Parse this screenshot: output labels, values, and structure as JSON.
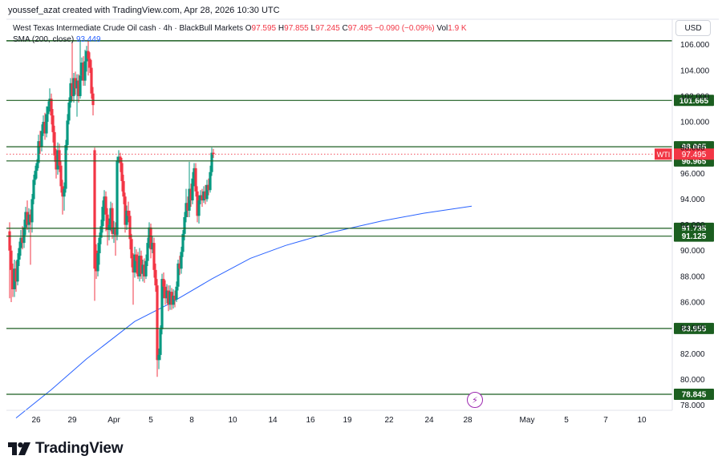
{
  "header": {
    "caption": "youssef_azat created with TradingView.com, Apr 28, 2026 10:30 UTC",
    "symbol": "West Texas Intermediate Crude Oil cash · 4h · BlackBull Markets",
    "ohlc": {
      "o_label": "O",
      "o": "97.595",
      "h_label": "H",
      "h": "97.855",
      "l_label": "L",
      "l": "97.245",
      "c_label": "C",
      "c": "97.495",
      "change": "−0.090 (−0.09%)",
      "vol_label": "Vol",
      "vol": "1.9 K"
    },
    "sma_label": "SMA (200, close)",
    "sma_value": "93.449",
    "currency": "USD"
  },
  "colors": {
    "up": "#089981",
    "down": "#f23645",
    "level_line": "#1b5e20",
    "level_badge": "#1b5e20",
    "sma": "#2962ff",
    "price_badge": "#f23645"
  },
  "logo_text": "TradingView",
  "chart_data": {
    "type": "candlestick",
    "timeframe": "4h",
    "y_ticks": [
      "78.000",
      "80.000",
      "82.000",
      "84.000",
      "86.000",
      "88.000",
      "90.000",
      "92.000",
      "94.000",
      "96.000",
      "98.000",
      "100.000",
      "102.000",
      "104.000",
      "106.000"
    ],
    "ylim": [
      77.6,
      106.6
    ],
    "x_ticks": [
      "26",
      "29",
      "Apr",
      "5",
      "8",
      "10",
      "14",
      "16",
      "19",
      "22",
      "24",
      "28",
      "May",
      "5",
      "7",
      "10"
    ],
    "horizontal_levels": [
      {
        "label": "101.665",
        "value": 101.665
      },
      {
        "label": "98.065",
        "value": 98.065
      },
      {
        "label": "96.965",
        "value": 96.965
      },
      {
        "label": "91.735",
        "value": 91.735
      },
      {
        "label": "91.125",
        "value": 91.125
      },
      {
        "label": "83.955",
        "value": 83.955
      },
      {
        "label": "78.845",
        "value": 78.845
      }
    ],
    "top_level_value": 106.3,
    "current_price": {
      "symbol": "WTI",
      "label": "97.495",
      "value": 97.495
    },
    "sma_points": [
      {
        "bar": 4,
        "value": 77.0
      },
      {
        "bar": 26,
        "value": 79.2
      },
      {
        "bar": 48,
        "value": 81.6
      },
      {
        "bar": 78,
        "value": 84.5
      },
      {
        "bar": 100,
        "value": 85.9
      },
      {
        "bar": 126,
        "value": 87.8
      },
      {
        "bar": 150,
        "value": 89.4
      },
      {
        "bar": 172,
        "value": 90.4
      },
      {
        "bar": 200,
        "value": 91.4
      },
      {
        "bar": 232,
        "value": 92.3
      },
      {
        "bar": 258,
        "value": 92.9
      },
      {
        "bar": 288,
        "value": 93.45
      }
    ],
    "candles": [
      [
        91.5,
        90.0,
        92.2,
        86.3
      ],
      [
        90.0,
        88.5,
        90.4,
        86.0
      ],
      [
        88.5,
        87.0,
        89.0,
        86.4
      ],
      [
        87.0,
        88.6,
        89.3,
        86.4
      ],
      [
        88.6,
        87.6,
        89.2,
        86.8
      ],
      [
        87.6,
        89.3,
        89.8,
        87.3
      ],
      [
        89.3,
        90.2,
        90.7,
        88.8
      ],
      [
        90.2,
        91.0,
        91.6,
        89.6
      ],
      [
        91.0,
        90.6,
        91.9,
        90.1
      ],
      [
        90.6,
        91.8,
        92.4,
        90.2
      ],
      [
        91.8,
        93.0,
        93.4,
        91.2
      ],
      [
        93.0,
        92.0,
        93.9,
        91.6
      ],
      [
        92.0,
        92.8,
        93.3,
        91.4
      ],
      [
        92.8,
        92.2,
        93.2,
        88.9
      ],
      [
        92.2,
        94.0,
        94.4,
        91.4
      ],
      [
        94.0,
        95.5,
        95.9,
        93.6
      ],
      [
        95.5,
        96.2,
        96.6,
        95.1
      ],
      [
        96.2,
        96.8,
        97.1,
        95.6
      ],
      [
        96.8,
        98.5,
        99.0,
        96.4
      ],
      [
        98.5,
        98.1,
        99.3,
        97.5
      ],
      [
        98.1,
        99.3,
        99.8,
        97.7
      ],
      [
        99.3,
        100.0,
        100.5,
        98.9
      ],
      [
        100.0,
        99.1,
        100.7,
        98.6
      ],
      [
        99.1,
        100.6,
        101.2,
        98.8
      ],
      [
        100.6,
        101.2,
        101.6,
        100.0
      ],
      [
        101.2,
        101.8,
        102.6,
        100.8
      ],
      [
        101.8,
        100.5,
        102.2,
        99.8
      ],
      [
        100.5,
        99.2,
        101.0,
        98.4
      ],
      [
        99.2,
        97.4,
        99.7,
        96.9
      ],
      [
        97.4,
        96.3,
        97.9,
        95.6
      ],
      [
        96.3,
        97.8,
        98.4,
        95.9
      ],
      [
        97.8,
        96.6,
        98.3,
        96.1
      ],
      [
        96.6,
        95.0,
        97.0,
        94.5
      ],
      [
        95.0,
        94.2,
        95.5,
        92.8
      ],
      [
        94.2,
        94.8,
        95.3,
        93.1
      ],
      [
        94.8,
        98.2,
        98.6,
        94.5
      ],
      [
        98.2,
        100.1,
        100.6,
        97.8
      ],
      [
        100.1,
        101.5,
        101.9,
        99.8
      ],
      [
        101.5,
        103.0,
        103.4,
        101.1
      ],
      [
        103.0,
        102.0,
        106.2,
        101.6
      ],
      [
        102.0,
        103.4,
        103.8,
        101.5
      ],
      [
        103.4,
        102.6,
        103.9,
        102.1
      ],
      [
        102.6,
        103.2,
        103.7,
        100.4
      ],
      [
        103.2,
        102.0,
        103.7,
        101.5
      ],
      [
        102.0,
        103.6,
        106.3,
        101.8
      ],
      [
        103.6,
        104.6,
        105.0,
        103.2
      ],
      [
        104.6,
        103.2,
        105.1,
        102.8
      ],
      [
        103.2,
        104.7,
        105.6,
        102.8
      ],
      [
        104.7,
        105.5,
        105.9,
        103.9
      ],
      [
        105.5,
        104.9,
        106.3,
        103.6
      ],
      [
        104.9,
        104.2,
        105.4,
        103.8
      ],
      [
        104.2,
        102.2,
        104.8,
        101.8
      ],
      [
        102.2,
        101.3,
        102.7,
        100.5
      ],
      [
        97.8,
        88.6,
        98.0,
        86.1
      ],
      [
        90.0,
        88.4,
        90.5,
        87.8
      ],
      [
        88.4,
        89.8,
        90.6,
        88.0
      ],
      [
        89.8,
        91.0,
        91.4,
        88.9
      ],
      [
        91.0,
        91.9,
        92.4,
        90.5
      ],
      [
        91.9,
        93.4,
        93.9,
        91.4
      ],
      [
        93.4,
        94.2,
        94.7,
        92.3
      ],
      [
        94.2,
        92.8,
        94.6,
        91.5
      ],
      [
        92.8,
        91.6,
        93.3,
        90.4
      ],
      [
        91.6,
        92.0,
        92.5,
        90.8
      ],
      [
        92.0,
        93.3,
        93.8,
        91.5
      ],
      [
        93.3,
        91.3,
        93.7,
        90.9
      ],
      [
        91.3,
        91.8,
        92.3,
        90.6
      ],
      [
        91.8,
        91.2,
        92.2,
        89.6
      ],
      [
        91.2,
        97.0,
        97.3,
        90.8
      ],
      [
        97.0,
        97.3,
        97.8,
        96.8
      ],
      [
        97.3,
        96.8,
        97.6,
        96.1
      ],
      [
        96.8,
        95.4,
        97.2,
        94.6
      ],
      [
        95.4,
        94.2,
        95.9,
        93.6
      ],
      [
        94.2,
        92.0,
        94.5,
        91.4
      ],
      [
        92.0,
        93.1,
        93.5,
        91.6
      ],
      [
        93.1,
        92.7,
        93.8,
        92.2
      ],
      [
        92.7,
        90.9,
        93.1,
        90.1
      ],
      [
        90.9,
        89.4,
        91.3,
        88.7
      ],
      [
        89.4,
        88.3,
        89.8,
        85.8
      ],
      [
        88.3,
        89.7,
        90.3,
        87.9
      ],
      [
        89.7,
        89.2,
        90.1,
        88.2
      ],
      [
        89.2,
        88.0,
        89.9,
        87.8
      ],
      [
        88.0,
        89.6,
        90.2,
        87.6
      ],
      [
        89.6,
        88.2,
        90.0,
        87.8
      ],
      [
        88.2,
        88.9,
        89.3,
        87.6
      ],
      [
        88.9,
        88.0,
        89.4,
        87.5
      ],
      [
        88.0,
        89.2,
        89.7,
        87.8
      ],
      [
        89.2,
        90.6,
        91.0,
        88.8
      ],
      [
        90.6,
        91.8,
        92.2,
        90.2
      ],
      [
        91.8,
        90.1,
        92.1,
        89.4
      ],
      [
        90.1,
        90.6,
        91.1,
        89.8
      ],
      [
        90.6,
        88.5,
        91.0,
        87.9
      ],
      [
        88.5,
        87.3,
        89.0,
        86.8
      ],
      [
        87.3,
        81.5,
        87.8,
        80.2
      ],
      [
        81.5,
        81.9,
        82.4,
        80.8
      ],
      [
        81.9,
        83.9,
        84.2,
        81.5
      ],
      [
        83.9,
        87.8,
        88.2,
        83.5
      ],
      [
        87.8,
        87.2,
        88.3,
        86.3
      ],
      [
        87.2,
        86.3,
        87.7,
        85.8
      ],
      [
        86.3,
        86.9,
        87.4,
        85.9
      ],
      [
        86.9,
        85.8,
        87.3,
        85.3
      ],
      [
        85.8,
        86.8,
        87.3,
        85.4
      ],
      [
        86.8,
        85.8,
        87.1,
        85.4
      ],
      [
        85.8,
        86.5,
        87.0,
        85.5
      ],
      [
        86.5,
        86.2,
        86.9,
        85.6
      ],
      [
        86.2,
        87.2,
        87.6,
        86.0
      ],
      [
        87.2,
        89.0,
        89.3,
        86.9
      ],
      [
        89.0,
        88.6,
        89.6,
        88.1
      ],
      [
        88.6,
        89.9,
        90.3,
        88.2
      ],
      [
        89.9,
        91.3,
        91.6,
        89.5
      ],
      [
        91.3,
        92.6,
        93.0,
        90.8
      ],
      [
        92.6,
        93.7,
        94.8,
        92.2
      ],
      [
        93.7,
        93.1,
        94.2,
        92.6
      ],
      [
        93.1,
        94.8,
        96.9,
        92.6
      ],
      [
        94.8,
        93.9,
        95.2,
        93.4
      ],
      [
        93.9,
        95.6,
        96.1,
        93.6
      ],
      [
        95.6,
        96.4,
        96.8,
        95.0
      ],
      [
        96.4,
        94.6,
        96.8,
        94.2
      ],
      [
        94.6,
        92.7,
        95.0,
        92.2
      ],
      [
        92.7,
        93.9,
        94.3,
        92.1
      ],
      [
        93.9,
        94.3,
        94.7,
        93.6
      ],
      [
        94.3,
        93.9,
        94.8,
        93.4
      ],
      [
        93.9,
        94.6,
        95.0,
        93.7
      ],
      [
        94.6,
        94.0,
        95.1,
        93.6
      ],
      [
        94.0,
        95.1,
        95.5,
        93.8
      ],
      [
        95.1,
        94.7,
        95.6,
        94.3
      ],
      [
        94.7,
        96.1,
        96.6,
        94.5
      ],
      [
        96.1,
        97.6,
        98.0,
        95.8
      ],
      [
        97.6,
        97.5,
        97.9,
        97.2
      ]
    ]
  }
}
